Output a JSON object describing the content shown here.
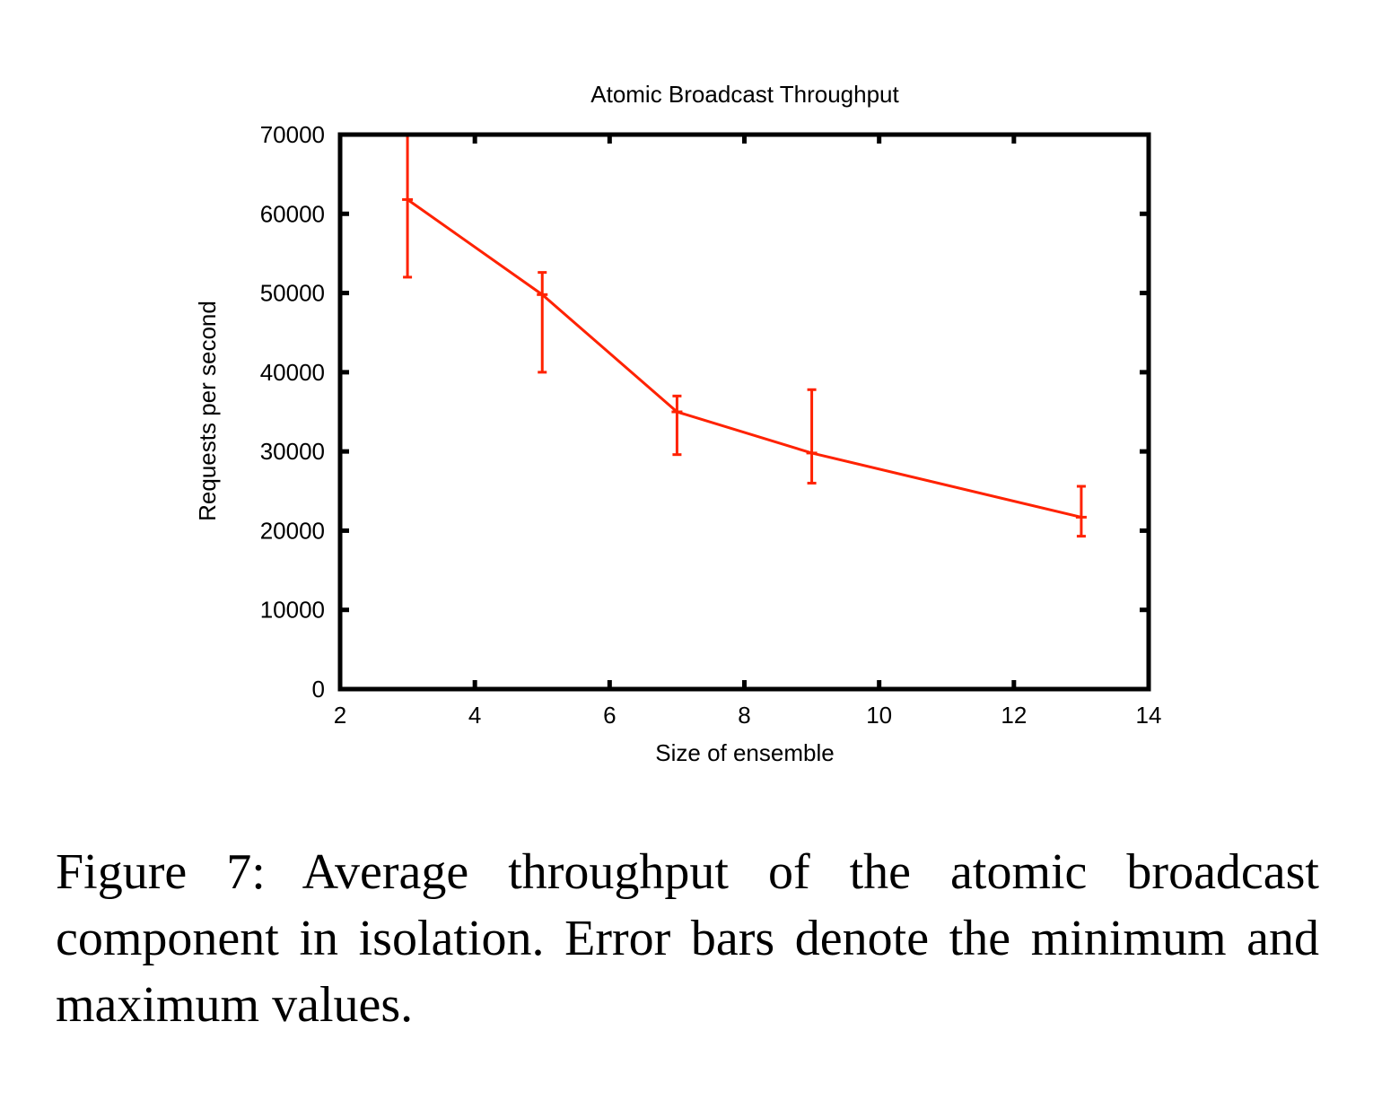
{
  "chart_data": {
    "type": "line",
    "title": "Atomic Broadcast Throughput",
    "xlabel": "Size of ensemble",
    "ylabel": "Requests per second",
    "xlim": [
      2,
      14
    ],
    "ylim": [
      0,
      70000
    ],
    "xticks": [
      2,
      4,
      6,
      8,
      10,
      12,
      14
    ],
    "yticks": [
      0,
      10000,
      20000,
      30000,
      40000,
      50000,
      60000,
      70000
    ],
    "grid": false,
    "legend": "none",
    "series": [
      {
        "color": "#ff2200",
        "points": [
          {
            "x": 3,
            "y": 61800,
            "min": 52000,
            "max": 70000
          },
          {
            "x": 5,
            "y": 49800,
            "min": 40000,
            "max": 52600
          },
          {
            "x": 7,
            "y": 35000,
            "min": 29600,
            "max": 37000
          },
          {
            "x": 9,
            "y": 29800,
            "min": 26000,
            "max": 37800
          },
          {
            "x": 13,
            "y": 21700,
            "min": 19300,
            "max": 25600
          }
        ]
      }
    ]
  },
  "caption": "Figure 7:  Average throughput of the atomic broadcast component in isolation. Error bars denote the minimum and maximum values."
}
